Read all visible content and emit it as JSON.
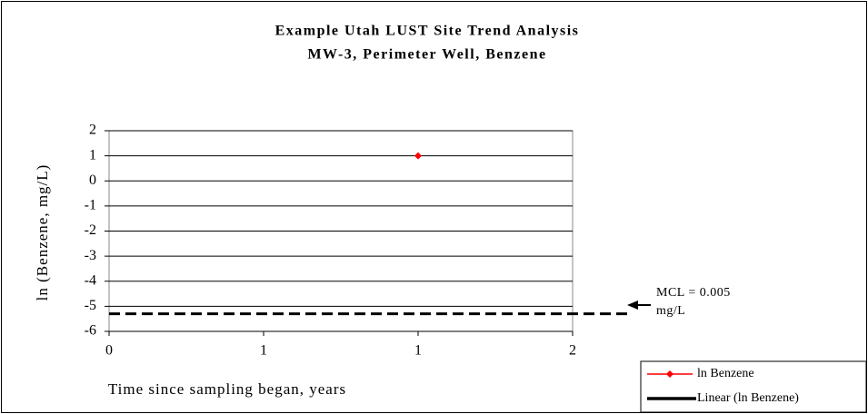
{
  "chart_data": {
    "type": "scatter",
    "title": "Example Utah LUST Site Trend Analysis",
    "subtitle": "MW-3, Perimeter Well,  Benzene",
    "x_label": "Time since sampling began, years",
    "y_label": "ln (Benzene, mg/L)",
    "xlim": [
      0,
      2
    ],
    "xticks": [
      0,
      {
        "value": 0.6667,
        "label": "1"
      },
      {
        "value": 1.3333,
        "label": "1"
      },
      2
    ],
    "ylim": [
      -6,
      2
    ],
    "yticks": [
      2,
      1,
      0,
      -1,
      -2,
      -3,
      -4,
      -5,
      -6
    ],
    "grid": true,
    "series": [
      {
        "name": "ln Benzene",
        "color": "#ff0000",
        "x": [
          1.3333
        ],
        "values": [
          1
        ]
      }
    ],
    "trendline": {
      "name": "Linear (ln Benzene)",
      "color": "#000000"
    },
    "reference_line": {
      "value": -5.3,
      "label": "MCL = 0.005 mg/L"
    },
    "legend": "bottom-right"
  }
}
